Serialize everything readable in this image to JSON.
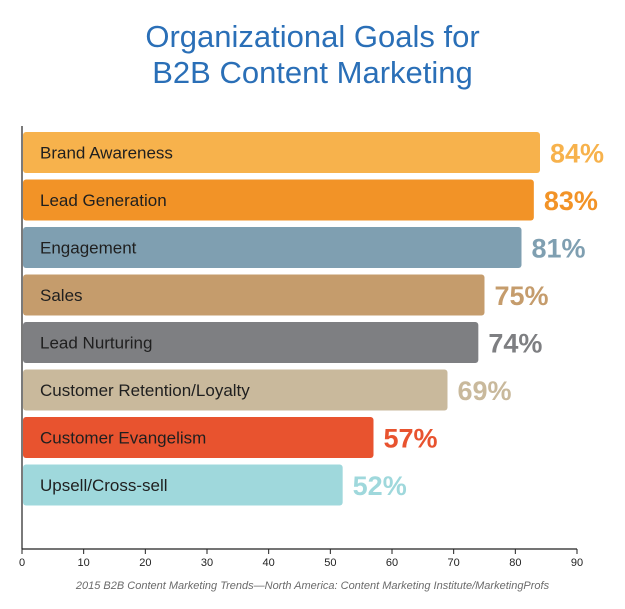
{
  "chart_data": {
    "type": "bar",
    "orientation": "horizontal",
    "title_lines": [
      "Organizational Goals for",
      "B2B Content Marketing"
    ],
    "categories": [
      "Brand Awareness",
      "Lead Generation",
      "Engagement",
      "Sales",
      "Lead Nurturing",
      "Customer Retention/Loyalty",
      "Customer Evangelism",
      "Upsell/Cross-sell"
    ],
    "values": [
      84,
      83,
      81,
      75,
      74,
      69,
      57,
      52
    ],
    "value_labels": [
      "84%",
      "83%",
      "81%",
      "75%",
      "74%",
      "69%",
      "57%",
      "52%"
    ],
    "colors": [
      "#f7b24c",
      "#f29327",
      "#7f9fb1",
      "#c59c6c",
      "#7e7f82",
      "#c9b99c",
      "#e8532f",
      "#9fd8dc"
    ],
    "xlim": [
      0,
      90
    ],
    "xticks": [
      0,
      10,
      20,
      30,
      40,
      50,
      60,
      70,
      80,
      90
    ],
    "title_color": "#2a6fb7",
    "grid": false,
    "legend": "none"
  },
  "source": "2015 B2B Content Marketing Trends—North America: Content Marketing Institute/MarketingProfs"
}
